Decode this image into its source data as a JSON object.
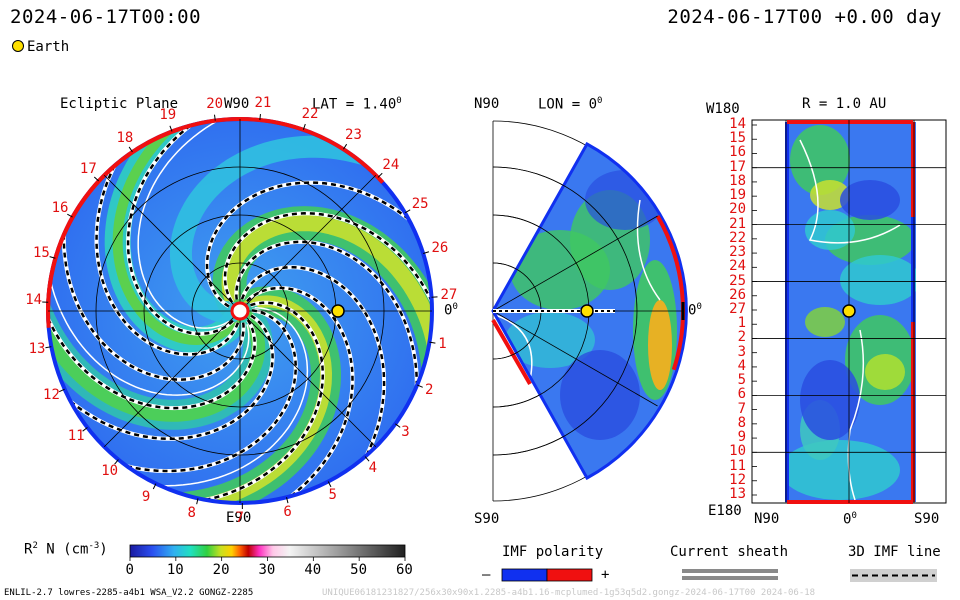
{
  "header": {
    "left_time": "2024-06-17T00:00",
    "right_time": "2024-06-17T00 +0.00 day",
    "legend_earth": "Earth"
  },
  "ecliptic_panel": {
    "title": "Ecliptic Plane",
    "top_label": "W90",
    "bottom_label": "E90",
    "lat_label": "LAT = 1.40",
    "lat_sup": "0",
    "zero_label": "0",
    "zero_sup": "0",
    "carrington_labels": [
      "1",
      "2",
      "3",
      "4",
      "5",
      "6",
      "7",
      "8",
      "9",
      "10",
      "11",
      "12",
      "13",
      "14",
      "15",
      "16",
      "17",
      "18",
      "19",
      "20",
      "21",
      "22",
      "23",
      "24",
      "25",
      "26",
      "27"
    ]
  },
  "meridional_panel": {
    "top_label": "N90",
    "bottom_label": "S90",
    "lon_label": "LON = 0",
    "lon_sup": "0",
    "zero_label": "0",
    "zero_sup": "0"
  },
  "map_panel": {
    "top_left": "W180",
    "bottom_left": "E180",
    "title": "R = 1.0 AU",
    "x_labels": [
      "N90",
      "0",
      "S90"
    ],
    "x_zero_sup": "0",
    "y_labels": [
      "14",
      "15",
      "16",
      "17",
      "18",
      "19",
      "20",
      "21",
      "22",
      "23",
      "24",
      "25",
      "26",
      "27",
      "1",
      "2",
      "3",
      "4",
      "5",
      "6",
      "7",
      "8",
      "9",
      "10",
      "11",
      "12",
      "13"
    ]
  },
  "colorbar": {
    "label_main": "R",
    "label_sup": "2",
    "label_rest": " N (cm",
    "label_sup2": "-3",
    "label_end": ")",
    "ticks": [
      "0",
      "10",
      "20",
      "30",
      "40",
      "50",
      "60"
    ],
    "range": [
      0,
      60
    ]
  },
  "legends": {
    "imf_title": "IMF polarity",
    "imf_minus": "–",
    "imf_plus": "+",
    "sheath_title": "Current sheath",
    "line_title": "3D IMF line"
  },
  "footer": {
    "run_info": "ENLIL-2.7 lowres-2285-a4b1 WSA_V2.2 GONGZ-2285",
    "run_id": "UNIQUE06181231827/256x30x90x1.2285-a4b1.16-mcplumed-1g53q5d2.gongz-2024-06-17T00 2024-06-18"
  },
  "colors": {
    "imf_negative": "#1030f0",
    "imf_positive": "#f01010",
    "earth": "#ffe000",
    "grid": "#000000"
  },
  "chart_data": {
    "type": "heatmap",
    "variable": "R^2 N (cm^-3)",
    "colorbar_range": [
      0,
      60
    ],
    "colorbar_ticks": [
      0,
      10,
      20,
      30,
      40,
      50,
      60
    ],
    "earth_radius_au": 1.0,
    "earth_latitude_deg": 1.4,
    "earth_longitude_deg": 0
  }
}
